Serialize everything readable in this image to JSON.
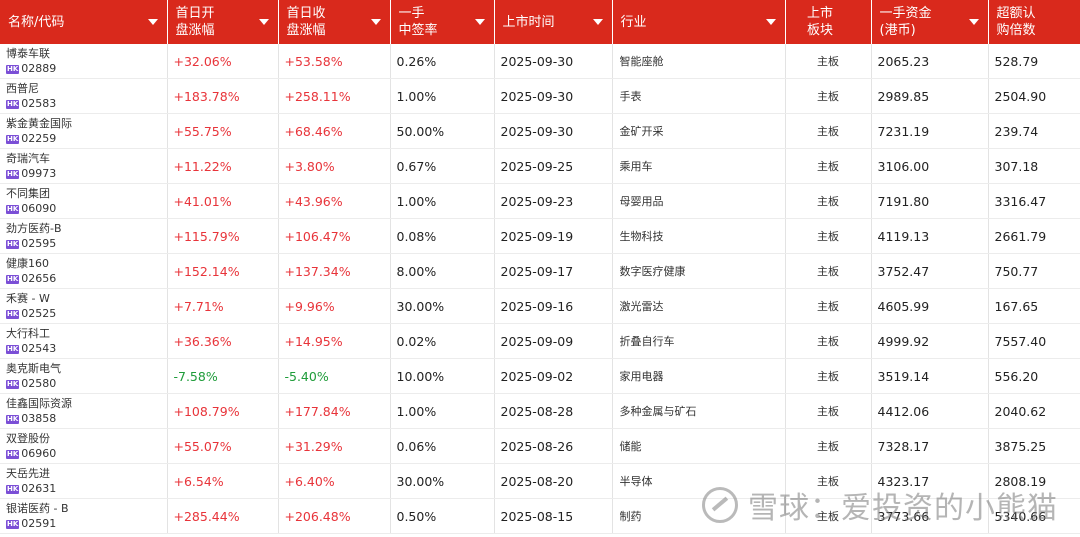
{
  "header": {
    "columns": [
      {
        "key": "name",
        "label": "名称/代码",
        "sortable": true
      },
      {
        "key": "open_pct",
        "label": "首日开盘涨幅",
        "sortable": true
      },
      {
        "key": "close_pct",
        "label": "首日收盘涨幅",
        "sortable": true
      },
      {
        "key": "lot_rate",
        "label": "一手中签率",
        "sortable": true
      },
      {
        "key": "list_date",
        "label": "上市时间",
        "sortable": true
      },
      {
        "key": "industry",
        "label": "行业",
        "sortable": true
      },
      {
        "key": "board",
        "label": "上市板块",
        "sortable": false
      },
      {
        "key": "lot_cost",
        "label": "一手资金(港币)",
        "sortable": true
      },
      {
        "key": "oversub",
        "label": "超额认购倍数",
        "sortable": false
      }
    ],
    "labels": {
      "name": "名称/代码",
      "open_l1": "首日开",
      "open_l2": "盘涨幅",
      "close_l1": "首日收",
      "close_l2": "盘涨幅",
      "lot_l1": "一手",
      "lot_l2": "中签率",
      "date": "上市时间",
      "industry": "行业",
      "board_l1": "上市",
      "board_l2": "板块",
      "cost_l1": "一手资金",
      "cost_l2": "(港币)",
      "over_l1": "超额认",
      "over_l2": "购倍数"
    }
  },
  "badge_text": "HK",
  "colors": {
    "header_bg": "#d9291c",
    "up": "#e8343a",
    "down": "#1f9c3a",
    "badge": "#7b4fd6"
  },
  "rows": [
    {
      "name": "博泰车联",
      "code": "02889",
      "open": "+32.06%",
      "open_dir": "up",
      "close": "+53.58%",
      "close_dir": "up",
      "rate": "0.26%",
      "date": "2025-09-30",
      "industry": "智能座舱",
      "board": "主板",
      "cost": "2065.23",
      "over": "528.79"
    },
    {
      "name": "西普尼",
      "code": "02583",
      "open": "+183.78%",
      "open_dir": "up",
      "close": "+258.11%",
      "close_dir": "up",
      "rate": "1.00%",
      "date": "2025-09-30",
      "industry": "手表",
      "board": "主板",
      "cost": "2989.85",
      "over": "2504.90"
    },
    {
      "name": "紫金黄金国际",
      "code": "02259",
      "open": "+55.75%",
      "open_dir": "up",
      "close": "+68.46%",
      "close_dir": "up",
      "rate": "50.00%",
      "date": "2025-09-30",
      "industry": "金矿开采",
      "board": "主板",
      "cost": "7231.19",
      "over": "239.74"
    },
    {
      "name": "奇瑞汽车",
      "code": "09973",
      "open": "+11.22%",
      "open_dir": "up",
      "close": "+3.80%",
      "close_dir": "up",
      "rate": "0.67%",
      "date": "2025-09-25",
      "industry": "乘用车",
      "board": "主板",
      "cost": "3106.00",
      "over": "307.18"
    },
    {
      "name": "不同集团",
      "code": "06090",
      "open": "+41.01%",
      "open_dir": "up",
      "close": "+43.96%",
      "close_dir": "up",
      "rate": "1.00%",
      "date": "2025-09-23",
      "industry": "母婴用品",
      "board": "主板",
      "cost": "7191.80",
      "over": "3316.47"
    },
    {
      "name": "劲方医药-B",
      "code": "02595",
      "open": "+115.79%",
      "open_dir": "up",
      "close": "+106.47%",
      "close_dir": "up",
      "rate": "0.08%",
      "date": "2025-09-19",
      "industry": "生物科技",
      "board": "主板",
      "cost": "4119.13",
      "over": "2661.79"
    },
    {
      "name": "健康160",
      "code": "02656",
      "open": "+152.14%",
      "open_dir": "up",
      "close": "+137.34%",
      "close_dir": "up",
      "rate": "8.00%",
      "date": "2025-09-17",
      "industry": "数字医疗健康",
      "board": "主板",
      "cost": "3752.47",
      "over": "750.77"
    },
    {
      "name": "禾赛 - W",
      "code": "02525",
      "open": "+7.71%",
      "open_dir": "up",
      "close": "+9.96%",
      "close_dir": "up",
      "rate": "30.00%",
      "date": "2025-09-16",
      "industry": "激光雷达",
      "board": "主板",
      "cost": "4605.99",
      "over": "167.65"
    },
    {
      "name": "大行科工",
      "code": "02543",
      "open": "+36.36%",
      "open_dir": "up",
      "close": "+14.95%",
      "close_dir": "up",
      "rate": "0.02%",
      "date": "2025-09-09",
      "industry": "折叠自行车",
      "board": "主板",
      "cost": "4999.92",
      "over": "7557.40"
    },
    {
      "name": "奥克斯电气",
      "code": "02580",
      "open": "-7.58%",
      "open_dir": "down",
      "close": "-5.40%",
      "close_dir": "down",
      "rate": "10.00%",
      "date": "2025-09-02",
      "industry": "家用电器",
      "board": "主板",
      "cost": "3519.14",
      "over": "556.20"
    },
    {
      "name": "佳鑫国际资源",
      "code": "03858",
      "open": "+108.79%",
      "open_dir": "up",
      "close": "+177.84%",
      "close_dir": "up",
      "rate": "1.00%",
      "date": "2025-08-28",
      "industry": "多种金属与矿石",
      "board": "主板",
      "cost": "4412.06",
      "over": "2040.62"
    },
    {
      "name": "双登股份",
      "code": "06960",
      "open": "+55.07%",
      "open_dir": "up",
      "close": "+31.29%",
      "close_dir": "up",
      "rate": "0.06%",
      "date": "2025-08-26",
      "industry": "储能",
      "board": "主板",
      "cost": "7328.17",
      "over": "3875.25"
    },
    {
      "name": "天岳先进",
      "code": "02631",
      "open": "+6.54%",
      "open_dir": "up",
      "close": "+6.40%",
      "close_dir": "up",
      "rate": "30.00%",
      "date": "2025-08-20",
      "industry": "半导体",
      "board": "主板",
      "cost": "4323.17",
      "over": "2808.19"
    },
    {
      "name": "银诺医药 - B",
      "code": "02591",
      "open": "+285.44%",
      "open_dir": "up",
      "close": "+206.48%",
      "close_dir": "up",
      "rate": "0.50%",
      "date": "2025-08-15",
      "industry": "制药",
      "board": "主板",
      "cost": "3773.66",
      "over": "5340.66"
    }
  ],
  "watermark": {
    "text": "雪球：爱投资的小熊猫"
  }
}
